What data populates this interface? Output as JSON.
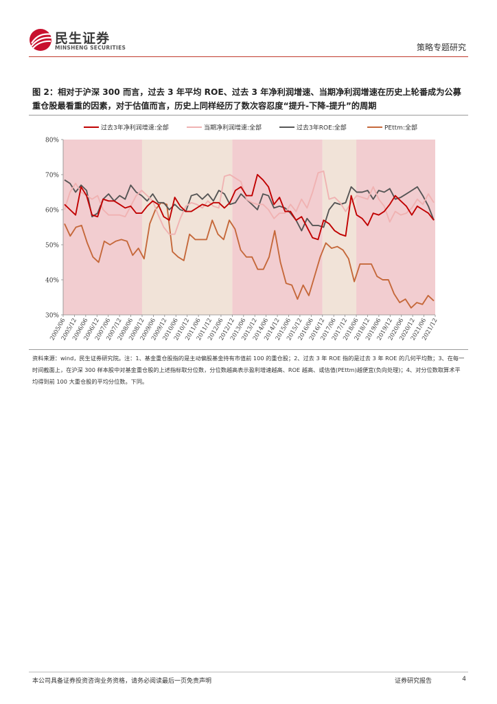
{
  "header": {
    "brand_cn": "民生证券",
    "brand_en": "MINSHENG SECURITIES",
    "doc_type": "策略专题研究"
  },
  "figure": {
    "title": "图 2：相对于沪深 300 而言，过去 3 年平均 ROE、过去 3 年净利润增速、当期净利润增速在历史上轮番成为公募重仓股最看重的因素，对于估值而言，历史上同样经历了数次容忍度“提升-下降-提升”的周期"
  },
  "chart_data": {
    "type": "line",
    "title": "",
    "xlabel": "",
    "ylabel": "",
    "ylim": [
      30,
      80
    ],
    "y_ticks": [
      "30%",
      "40%",
      "50%",
      "60%",
      "70%",
      "80%"
    ],
    "x_tick_labels": [
      "2005/06",
      "2005/12",
      "2006/06",
      "2006/12",
      "2007/06",
      "2007/12",
      "2008/06",
      "2008/12",
      "2009/06",
      "2009/12",
      "2010/06",
      "2010/12",
      "2011/06",
      "2011/12",
      "2012/06",
      "2012/12",
      "2013/06",
      "2013/12",
      "2014/06",
      "2014/12",
      "2015/06",
      "2015/12",
      "2016/06",
      "2016/12",
      "2017/06",
      "2017/12",
      "2018/06",
      "2018/12",
      "2019/06",
      "2019/12",
      "2020/06",
      "2020/12",
      "2021/06",
      "2021/12"
    ],
    "shaded_periods": [
      {
        "from": "2005/06",
        "to": "2008/12",
        "color": "#f2cdd0"
      },
      {
        "from": "2008/12",
        "to": "2012/12",
        "color": "#f1e3d8"
      },
      {
        "from": "2012/12",
        "to": "2016/12",
        "color": "#f2cdd0"
      },
      {
        "from": "2016/12",
        "to": "2018/06",
        "color": "#f1e3d8"
      },
      {
        "from": "2018/06",
        "to": "2021/12",
        "color": "#f2cdd0"
      }
    ],
    "series": [
      {
        "name": "过去3年净利润增速:全部",
        "color": "#c00000",
        "values": [
          61.5,
          60,
          58.5,
          66.5,
          64,
          58.5,
          58,
          63,
          62.5,
          62.5,
          61.5,
          60.5,
          61,
          59,
          59,
          61,
          62.5,
          61.5,
          58,
          57,
          63.5,
          61,
          59.5,
          59.5,
          60.5,
          61.5,
          61,
          62,
          62,
          60.5,
          62,
          65.5,
          66.5,
          64,
          64,
          70,
          68.5,
          66.5,
          61.5,
          63.5,
          59.5,
          59.5,
          57,
          58,
          55,
          52,
          51.5,
          57,
          56,
          54,
          53,
          52.5,
          64,
          58.5,
          57.5,
          55.5,
          59,
          58.5,
          59.5,
          61.5,
          64,
          62.5,
          61,
          58.5,
          61,
          60,
          59,
          57
        ]
      },
      {
        "name": "当期净利润增速:全部",
        "color": "#f0b2b2",
        "values": [
          60,
          65,
          67.5,
          65,
          64,
          63,
          64,
          60,
          58.5,
          58.5,
          58.5,
          58,
          61,
          64,
          65.5,
          64,
          62.5,
          58.5,
          55,
          53,
          53,
          57.5,
          61,
          62,
          61.5,
          60.5,
          62.5,
          61,
          60.5,
          69.5,
          70,
          69,
          68,
          63,
          62,
          61.5,
          61.5,
          60,
          57.5,
          59,
          59,
          61.5,
          59.5,
          63,
          60.5,
          65,
          70.5,
          71,
          63,
          63.5,
          62,
          59.5,
          62,
          64,
          63.5,
          63,
          66.5,
          63,
          61,
          56.5,
          59.5,
          58.5,
          59,
          60.5,
          63,
          61.5,
          64.5,
          62
        ]
      },
      {
        "name": "过去3年ROE:全部",
        "color": "#555555",
        "values": [
          68.5,
          67.5,
          65,
          67,
          65.5,
          58,
          59,
          63,
          64.5,
          62.5,
          64,
          63,
          67,
          65,
          64,
          62.5,
          64.5,
          62,
          62,
          60,
          61.5,
          60,
          59.5,
          64,
          64.5,
          63,
          64.5,
          62.5,
          65.5,
          64.5,
          61.5,
          62,
          64.5,
          63,
          61.5,
          60,
          64.5,
          64,
          60.5,
          61,
          60.5,
          59,
          57,
          54,
          57.5,
          55.5,
          55.5,
          55,
          60,
          62,
          61.5,
          62,
          66.5,
          65,
          65,
          65.5,
          63,
          65.5,
          65,
          66,
          63,
          63.5,
          64.5,
          65.5,
          66.5,
          64,
          61,
          57
        ]
      },
      {
        "name": "PEttm:全部",
        "color": "#c5683a",
        "values": [
          56,
          52.5,
          55,
          55.5,
          50.5,
          46.5,
          45,
          51,
          50,
          51,
          51.5,
          51,
          47,
          49,
          46,
          56,
          60,
          62,
          61.5,
          48,
          46.5,
          45.5,
          53,
          51.5,
          51.5,
          51.5,
          57,
          53,
          51.5,
          57,
          54.5,
          48.5,
          46.5,
          46.5,
          43,
          43,
          46.5,
          54,
          45,
          39,
          38.5,
          34.5,
          38.5,
          35.5,
          41,
          46.5,
          50.5,
          49,
          49.5,
          48.5,
          46,
          39.5,
          44.5,
          44.5,
          44.5,
          41,
          40,
          40,
          36,
          33.5,
          34.5,
          32,
          33.5,
          33,
          35.5,
          34
        ]
      }
    ],
    "legend_position": "top"
  },
  "source": {
    "text": "资料来源：wind，民生证券研究院。注：1、基金重仓股指的是主动偏股基金持有市值前 100 的重仓股；2、过去 3 年 ROE 指的是过去 3 年 ROE 的几何平均数；3、在每一时间截面上，在沪深 300 样本股中对基金重仓股的上述指标取分位数，分位数越高表示盈利增速越高、ROE 越高、或估值(PEttm)越便宜(负向处理)；4、对分位数取算术平均得到前 100 大重仓股的平均分位数。下同。"
  },
  "footer": {
    "disclaimer": "本公司具备证券投资咨询业务资格，请务必阅读最后一页免责声明",
    "report_type": "证券研究报告",
    "page": "4"
  },
  "colors": {
    "accent": "#c0392b"
  }
}
